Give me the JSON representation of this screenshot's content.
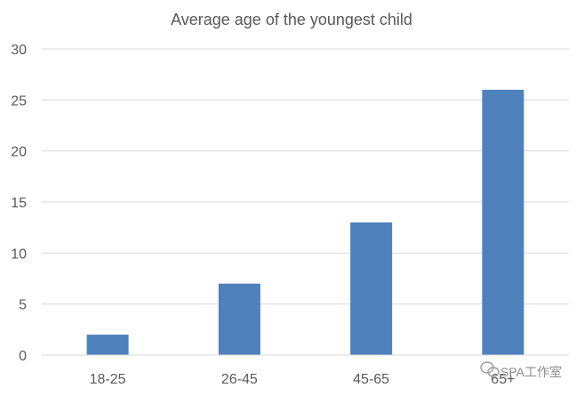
{
  "chart_data": {
    "type": "bar",
    "title": "Average age of the youngest child",
    "xlabel": "",
    "ylabel": "",
    "categories": [
      "18-25",
      "26-45",
      "45-65",
      "65+"
    ],
    "values": [
      2,
      7,
      13,
      26
    ],
    "ylim": [
      0,
      30
    ],
    "yticks": [
      "0",
      "5",
      "10",
      "15",
      "20",
      "25",
      "30"
    ],
    "grid": true,
    "legend": "none",
    "bar_color": "#4f81bd",
    "grid_color": "#d9d9d9",
    "text_color": "#595959"
  },
  "watermark": {
    "text": "SPA工作室",
    "icon": "wechat-icon"
  }
}
